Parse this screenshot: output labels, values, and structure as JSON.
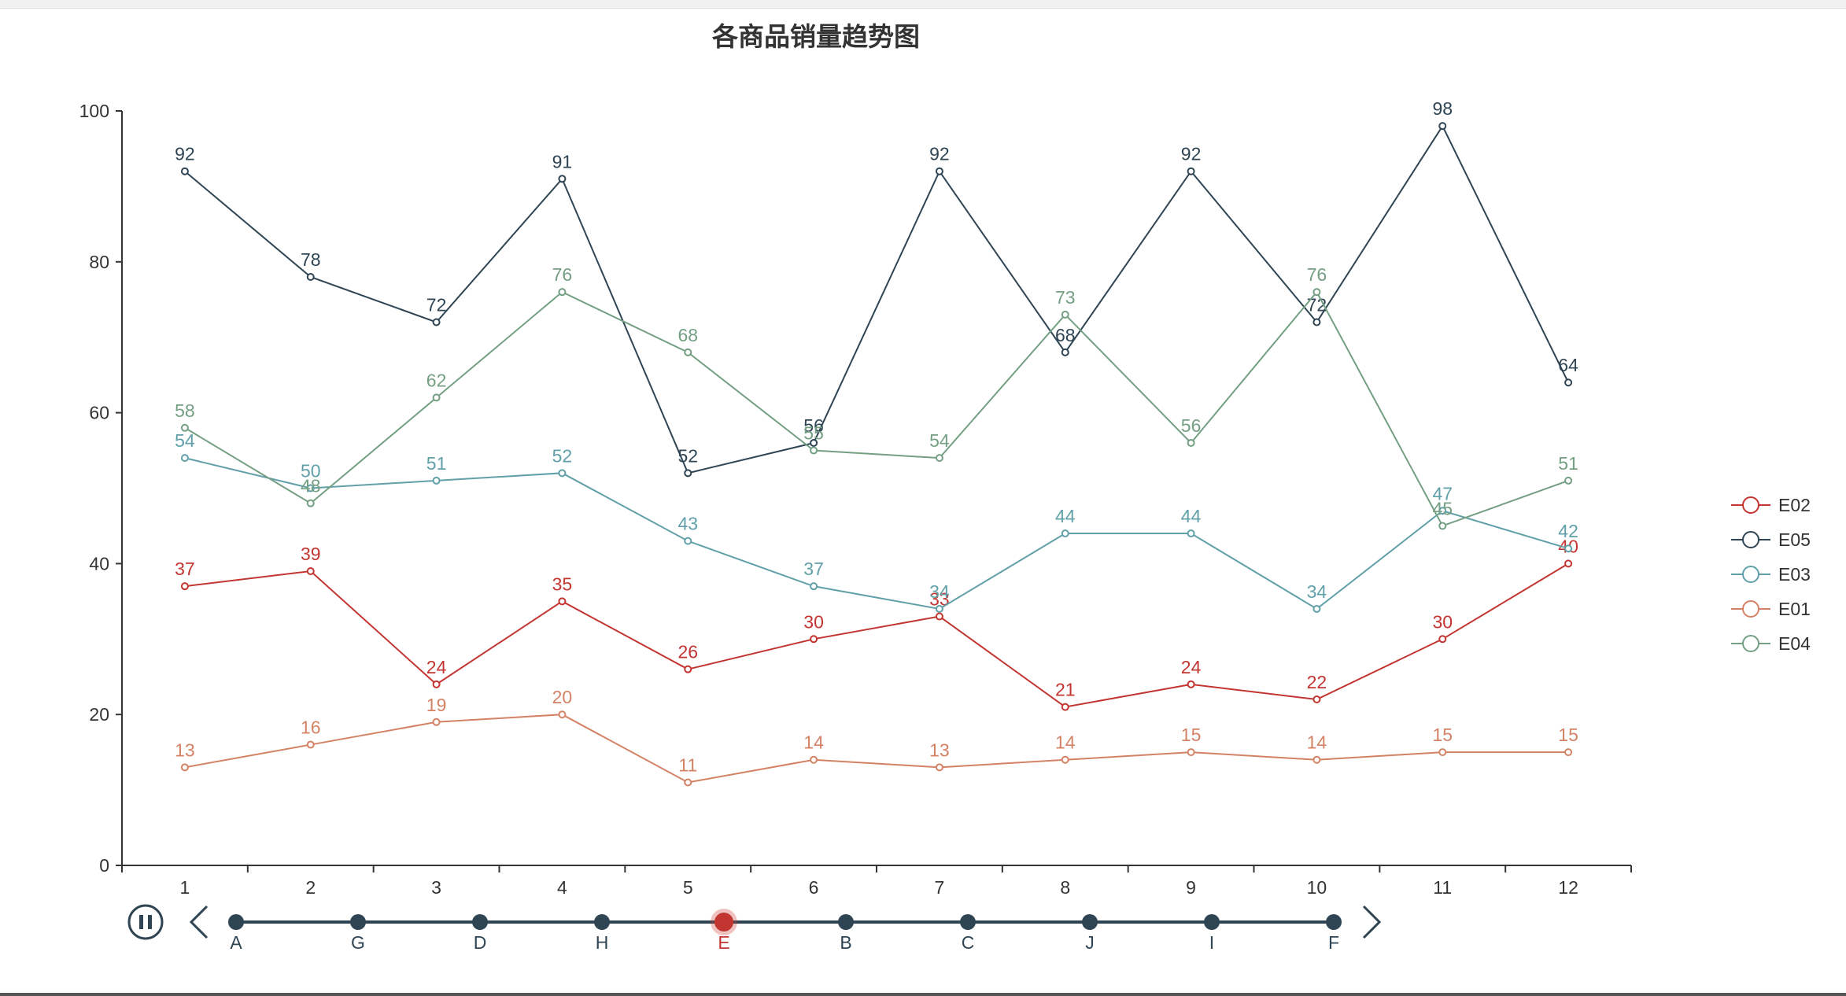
{
  "chart_data": {
    "type": "line",
    "title": "各商品销量趋势图",
    "xlabel": "",
    "ylabel": "",
    "categories": [
      "1",
      "2",
      "3",
      "4",
      "5",
      "6",
      "7",
      "8",
      "9",
      "10",
      "11",
      "12"
    ],
    "ylim": [
      0,
      100
    ],
    "yticks": [
      0,
      20,
      40,
      60,
      80,
      100
    ],
    "grid": false,
    "legend_position": "right",
    "series": [
      {
        "name": "E02",
        "color": "#c23531",
        "values": [
          37,
          39,
          24,
          35,
          26,
          30,
          33,
          21,
          24,
          22,
          30,
          40
        ]
      },
      {
        "name": "E05",
        "color": "#2f4554",
        "values": [
          92,
          78,
          72,
          91,
          52,
          56,
          92,
          68,
          92,
          72,
          98,
          64
        ]
      },
      {
        "name": "E03",
        "color": "#61a0a8",
        "values": [
          54,
          50,
          51,
          52,
          43,
          37,
          34,
          44,
          44,
          34,
          47,
          42
        ]
      },
      {
        "name": "E01",
        "color": "#d48265",
        "values": [
          13,
          16,
          19,
          20,
          11,
          14,
          13,
          14,
          15,
          14,
          15,
          15
        ]
      },
      {
        "name": "E04",
        "color": "#749f83",
        "values": [
          58,
          48,
          62,
          76,
          68,
          55,
          54,
          73,
          56,
          76,
          45,
          51
        ]
      }
    ]
  },
  "timeline": {
    "items": [
      "A",
      "G",
      "D",
      "H",
      "E",
      "B",
      "C",
      "J",
      "I",
      "F"
    ],
    "current": "E",
    "line_color": "#2f4554",
    "active_color": "#c23531",
    "play_icon": "pause-icon",
    "prev_icon": "chevron-left-icon",
    "next_icon": "chevron-right-icon"
  }
}
